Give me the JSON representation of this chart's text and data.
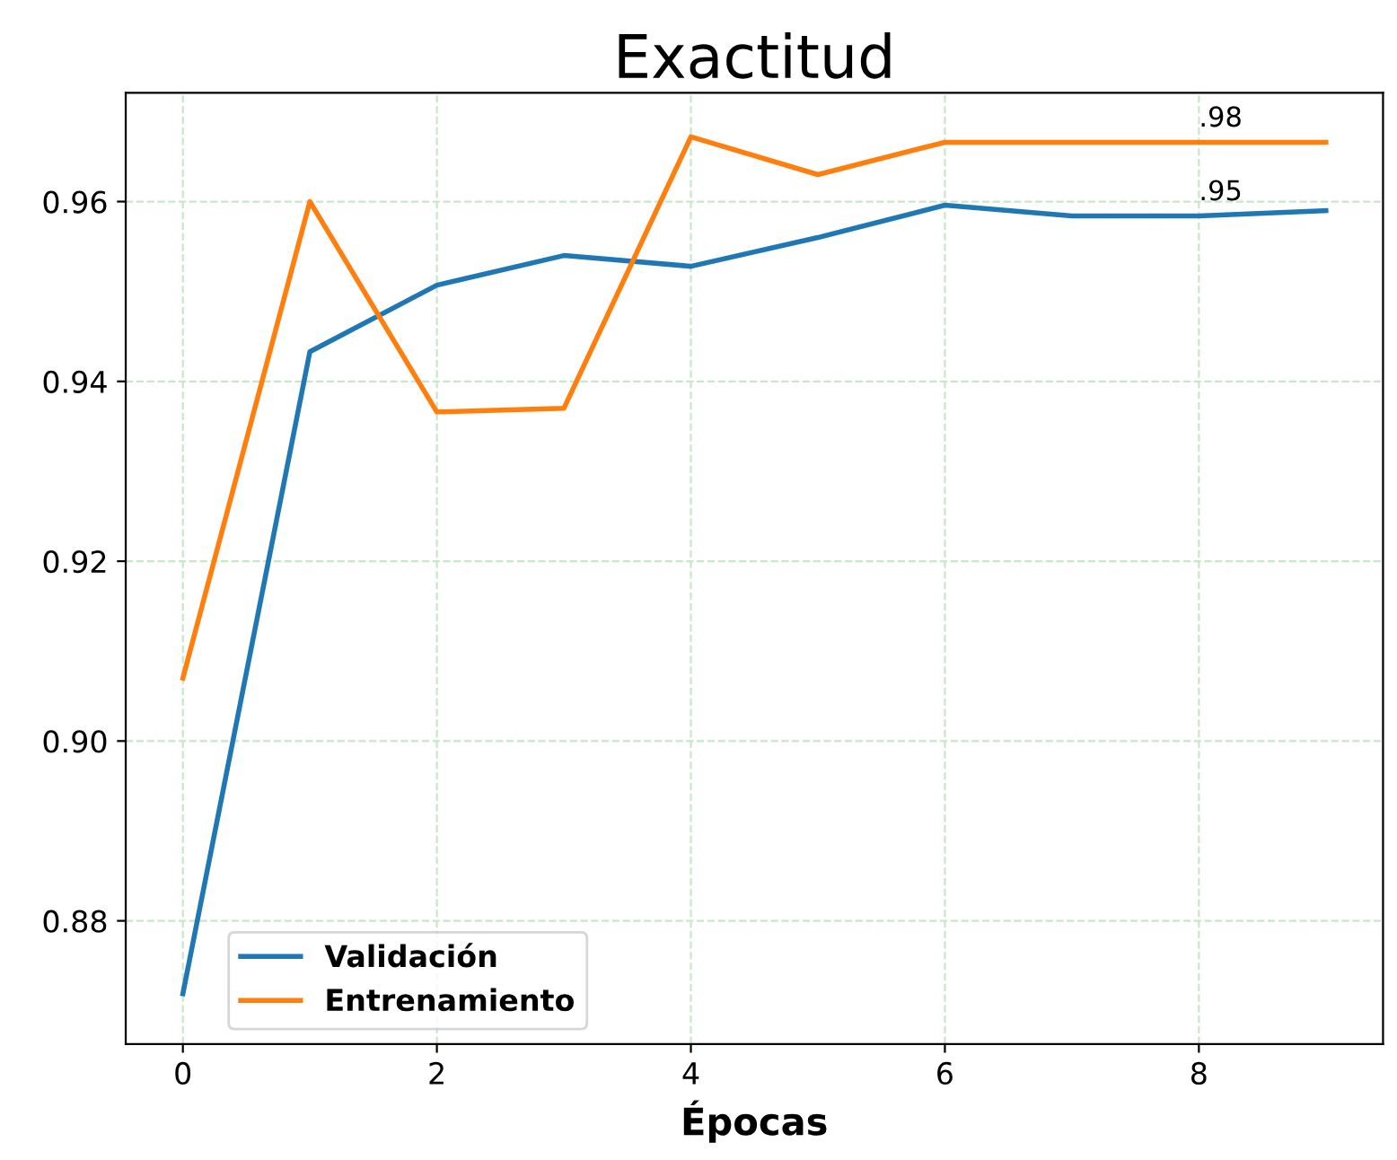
{
  "chart_data": {
    "type": "line",
    "title": "Exactitud",
    "xlabel": "Épocas",
    "x": [
      0,
      1,
      2,
      3,
      4,
      5,
      6,
      7,
      8,
      9
    ],
    "series": [
      {
        "name": "Validación",
        "color": "#1f77b4",
        "values": [
          0.8719,
          0.9433,
          0.9507,
          0.954,
          0.9528,
          0.956,
          0.9596,
          0.9584,
          0.9584,
          0.959
        ]
      },
      {
        "name": "Entrenamiento",
        "color": "#ff7f0e",
        "values": [
          0.907,
          0.96,
          0.9366,
          0.937,
          0.9672,
          0.963,
          0.9666,
          0.9666,
          0.9666,
          0.9666
        ]
      }
    ],
    "annotations": [
      {
        "text": ".98",
        "x": 8,
        "y": 0.9666
      },
      {
        "text": ".95",
        "x": 8,
        "y": 0.9584
      }
    ],
    "xlim": [
      -0.45,
      9.45
    ],
    "ylim": [
      0.8663,
      0.9721
    ],
    "xticks": [
      0,
      2,
      4,
      6,
      8
    ],
    "yticks": [
      {
        "value": 0.88,
        "label": "0.88"
      },
      {
        "value": 0.9,
        "label": "0.90"
      },
      {
        "value": 0.92,
        "label": "0.92"
      },
      {
        "value": 0.94,
        "label": "0.94"
      },
      {
        "value": 0.96,
        "label": "0.96"
      }
    ],
    "grid": true,
    "legend": "bottom left",
    "marker": "none",
    "line_style": "solid"
  }
}
